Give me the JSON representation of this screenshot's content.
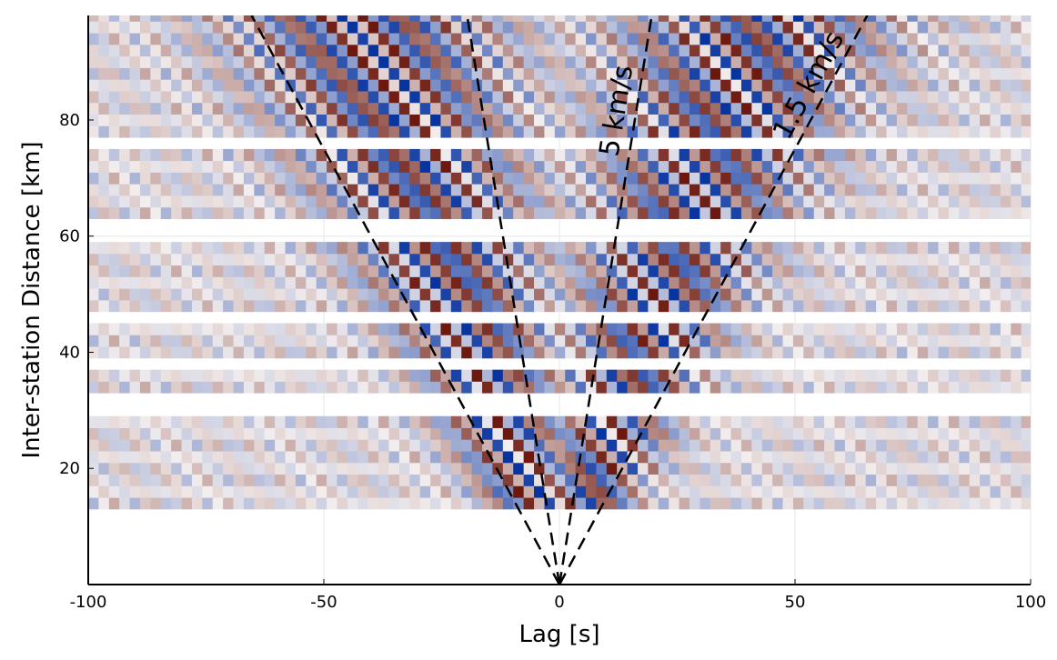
{
  "chart_data": {
    "type": "heatmap",
    "title": "",
    "xlabel": "Lag [s]",
    "ylabel": "Inter-station Distance [km]",
    "xlim": [
      -100,
      100
    ],
    "ylim": [
      0,
      98
    ],
    "xticks": [
      -100,
      -50,
      0,
      50,
      100
    ],
    "xtick_labels": [
      "-100",
      "-50",
      "0",
      "50",
      "100"
    ],
    "yticks": [
      20,
      40,
      60,
      80
    ],
    "ytick_labels": [
      "20",
      "40",
      "60",
      "80"
    ],
    "grid": true,
    "colormap": "diverging red-white-blue",
    "colors": {
      "positive": "#6b1a0e",
      "negative": "#0a3aa8",
      "zero": "#f2eeee"
    },
    "trace_distances_km": [
      14,
      16,
      18,
      20,
      22,
      24,
      26,
      28,
      34,
      36,
      40,
      42,
      44,
      48,
      50,
      52,
      54,
      56,
      58,
      64,
      66,
      68,
      70,
      72,
      74,
      78,
      80,
      82,
      84,
      86,
      88,
      90,
      92,
      94,
      96,
      98
    ],
    "velocity_lines": [
      {
        "label": "5 km/s",
        "velocity_km_s": 5
      },
      {
        "label": "1.5 km/s",
        "velocity_km_s": 1.5
      }
    ]
  }
}
